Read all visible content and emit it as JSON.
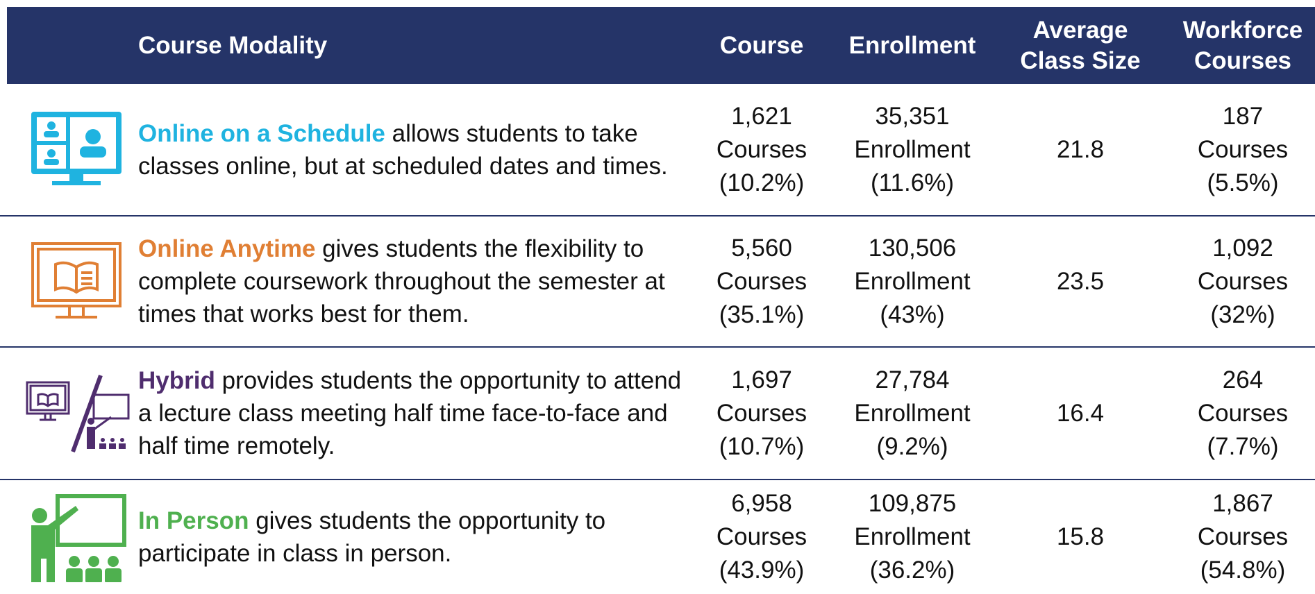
{
  "header": {
    "modality": "Course Modality",
    "course": "Course",
    "enrollment": "Enrollment",
    "avg_class_size": [
      "Average",
      "Class Size"
    ],
    "workforce": [
      "Workforce",
      "Courses"
    ]
  },
  "rows": [
    {
      "name": "Online on a Schedule",
      "color": "#1fb3e0",
      "description": " allows students to take classes online, but at scheduled dates and times.",
      "course": [
        "1,621",
        "Courses",
        "(10.2%)"
      ],
      "enrollment": [
        "35,351",
        "Enrollment",
        "(11.6%)"
      ],
      "avg_class_size": "21.8",
      "workforce": [
        "187",
        "Courses",
        "(5.5%)"
      ]
    },
    {
      "name": "Online Anytime",
      "color": "#e07f34",
      "description": " gives students the flexibility to complete coursework throughout the semester at times that works best for them.",
      "course": [
        "5,560",
        "Courses",
        "(35.1%)"
      ],
      "enrollment": [
        "130,506",
        "Enrollment",
        "(43%)"
      ],
      "avg_class_size": "23.5",
      "workforce": [
        "1,092",
        "Courses",
        "(32%)"
      ]
    },
    {
      "name": "Hybrid",
      "color": "#4f2d6e",
      "description": " provides students the opportunity to attend a lecture class meeting half time face-to-face and half time remotely.",
      "course": [
        "1,697",
        "Courses",
        "(10.7%)"
      ],
      "enrollment": [
        "27,784",
        "Enrollment",
        "(9.2%)"
      ],
      "avg_class_size": "16.4",
      "workforce": [
        "264",
        "Courses",
        "(7.7%)"
      ]
    },
    {
      "name": "In Person",
      "color": "#4fb04f",
      "description": " gives students the opportunity to participate in class in person.",
      "course": [
        "6,958",
        "Courses",
        "(43.9%)"
      ],
      "enrollment": [
        "109,875",
        "Enrollment",
        "(36.2%)"
      ],
      "avg_class_size": "15.8",
      "workforce": [
        "1,867",
        "Courses",
        "(54.8%)"
      ]
    }
  ]
}
